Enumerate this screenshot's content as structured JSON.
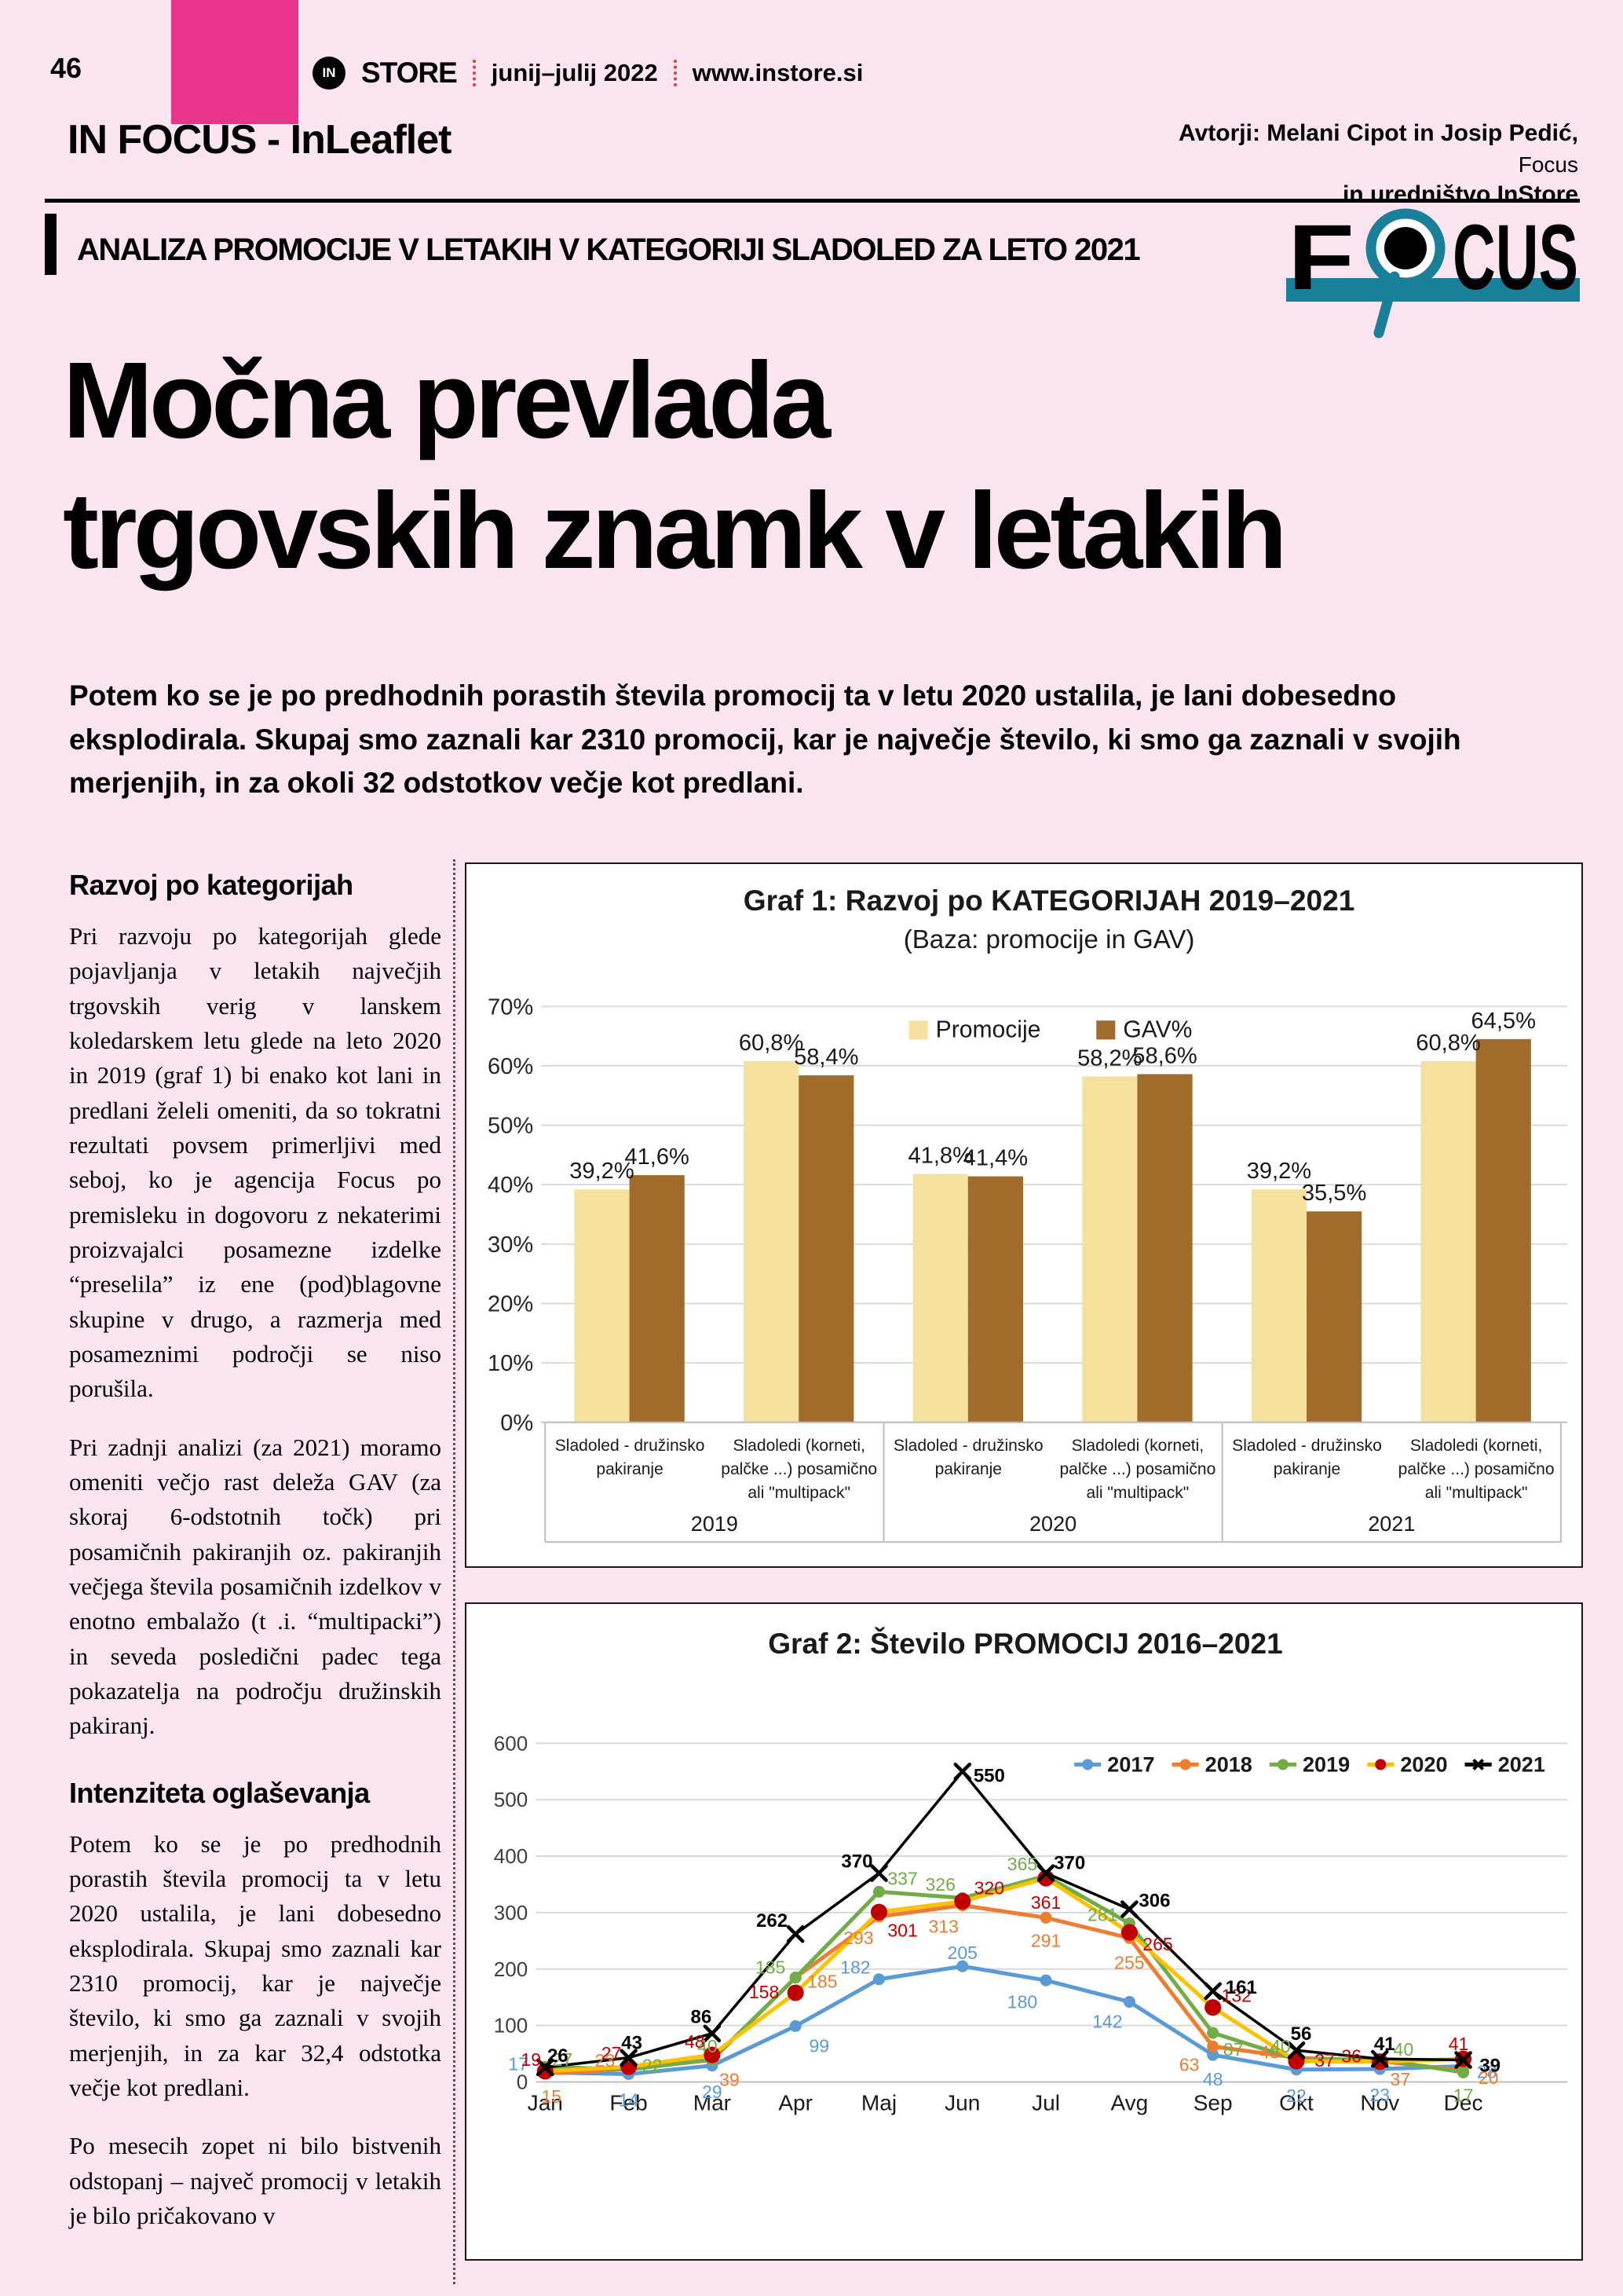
{
  "page": {
    "bg_color": "#F9E4EF",
    "accent_pink": "#E8348B",
    "accent_teal": "#1A7F98",
    "number": "46",
    "masthead": {
      "logo_in": "IN",
      "logo_store": "STORE",
      "issue": "junij–julij 2022",
      "website": "www.instore.si"
    },
    "section_title": "IN FOCUS - InLeaflet",
    "authors": {
      "line1": "Avtorji: Melani Cipot in Josip Pedić,",
      "line2": "Focus",
      "line3": "in uredništvo InStore"
    },
    "kicker": "ANALIZA PROMOCIJE V LETAKIH V KATEGORIJI SLADOLED ZA LETO 2021",
    "focus_logo": {
      "part1": "F",
      "part2": "CUS"
    },
    "headline_line1": "Močna prevlada",
    "headline_line2": "trgovskih znamk v letakih",
    "lead": "Potem ko se je po predhodnih porastih števila promocij ta v letu 2020 ustalila, je lani dobesedno eksplodirala. Skupaj smo zaznali kar 2310 promocij, kar je največje število, ki smo ga zaznali v svojih merjenjih, in za okoli 32 odstotkov večje kot predlani.",
    "article": {
      "heading1": "Razvoj po kategorijah",
      "para1": "Pri razvoju po kategorijah glede pojavljanja v letakih največjih trgovskih verig v lanskem koledarskem letu glede na leto 2020 in 2019 (graf 1) bi enako kot lani in predlani želeli omeniti, da so tokratni rezultati povsem primerljivi med seboj, ko je agencija Focus po premisleku in dogovoru z nekaterimi proizvajalci posamezne izdelke “preselila” iz ene (pod)blagovne skupine v drugo, a razmerja med posameznimi področji se niso porušila.",
      "para2": "Pri zadnji analizi (za 2021) moramo omeniti večjo rast deleža GAV (za skoraj 6-odstotnih točk) pri posamičnih pakiranjih oz. pakiranjih večjega števila posamičnih izdelkov v enotno embalažo (t .i. “multipacki”) in seveda posledični padec tega pokazatelja na področju družinskih pakiranj.",
      "heading2": "Intenziteta oglaševanja",
      "para3": "Potem ko se je po predhodnih porastih števila promocij ta v letu 2020 ustalila, je lani dobesedno eksplodirala. Skupaj smo zaznali kar 2310 promocij, kar je največje število, ki smo ga zaznali v svojih merjenjih, in za kar 32,4 odstotka večje kot predlani.",
      "para4": "Po mesecih zopet ni bilo bistvenih odstopanj – največ promocij v letakih je bilo pričakovano v"
    }
  },
  "chart_data": [
    {
      "type": "bar",
      "title": "Graf 1: Razvoj po KATEGORIJAH 2019–2021",
      "subtitle": "(Baza: promocije in GAV)",
      "year_groups": [
        "2019",
        "2020",
        "2021"
      ],
      "categories": [
        "Sladoled - družinsko pakiranje",
        "Sladoledi (korneti, palčke ...) posamično ali \"multipack\"",
        "Sladoled - družinsko pakiranje",
        "Sladoledi (korneti, palčke ...) posamično ali \"multipack\"",
        "Sladoled - družinsko pakiranje",
        "Sladoledi (korneti, palčke ...) posamično ali \"multipack\""
      ],
      "series": [
        {
          "name": "Promocije",
          "color": "#F5E09E",
          "values": [
            39.2,
            60.8,
            41.8,
            58.2,
            39.2,
            60.8
          ],
          "labels": [
            "39,2%",
            "60,8%",
            "41,8%",
            "58,2%",
            "39,2%",
            "60,8%"
          ]
        },
        {
          "name": "GAV%",
          "color": "#A06C2C",
          "values": [
            41.6,
            58.4,
            41.4,
            58.6,
            35.5,
            64.5
          ],
          "labels": [
            "41,6%",
            "58,4%",
            "41,4%",
            "58,6%",
            "35,5%",
            "64,5%"
          ]
        }
      ],
      "ylim": [
        0,
        70
      ],
      "ytick_step": 10,
      "ytick_suffix": "%",
      "grid": true,
      "legend_position": "top-center-inside"
    },
    {
      "type": "line",
      "title": "Graf 2: Število PROMOCIJ 2016–2021",
      "x_categories": [
        "Jan",
        "Feb",
        "Mar",
        "Apr",
        "Maj",
        "Jun",
        "Jul",
        "Avg",
        "Sep",
        "Okt",
        "Nov",
        "Dec"
      ],
      "ylim": [
        0,
        600
      ],
      "ytick_step": 100,
      "grid": true,
      "legend_position": "top-right-inside",
      "series": [
        {
          "name": "2017",
          "line_color": "#5B9BD5",
          "marker": "circle",
          "marker_color": "#5B9BD5",
          "values": [
            17,
            14,
            29,
            99,
            182,
            205,
            180,
            142,
            48,
            22,
            23,
            28
          ]
        },
        {
          "name": "2018",
          "line_color": "#ED7D31",
          "marker": "circle",
          "marker_color": "#ED7D31",
          "values": [
            15,
            23,
            39,
            185,
            293,
            313,
            291,
            255,
            63,
            43,
            37,
            20
          ]
        },
        {
          "name": "2019",
          "line_color": "#70AD47",
          "marker": "circle",
          "marker_color": "#70AD47",
          "values": [
            27,
            22,
            40,
            185,
            337,
            326,
            365,
            281,
            87,
            40,
            40,
            17
          ]
        },
        {
          "name": "2020",
          "line_color": "#FFC000",
          "marker": "circle",
          "marker_color": "#C00000",
          "values": [
            19,
            27,
            48,
            158,
            301,
            320,
            361,
            265,
            132,
            37,
            36,
            41
          ]
        },
        {
          "name": "2021",
          "line_color": "#000000",
          "marker": "x",
          "marker_color": "#000000",
          "bold_labels": true,
          "values": [
            26,
            43,
            86,
            262,
            370,
            550,
            370,
            306,
            161,
            56,
            41,
            39
          ]
        }
      ]
    }
  ]
}
